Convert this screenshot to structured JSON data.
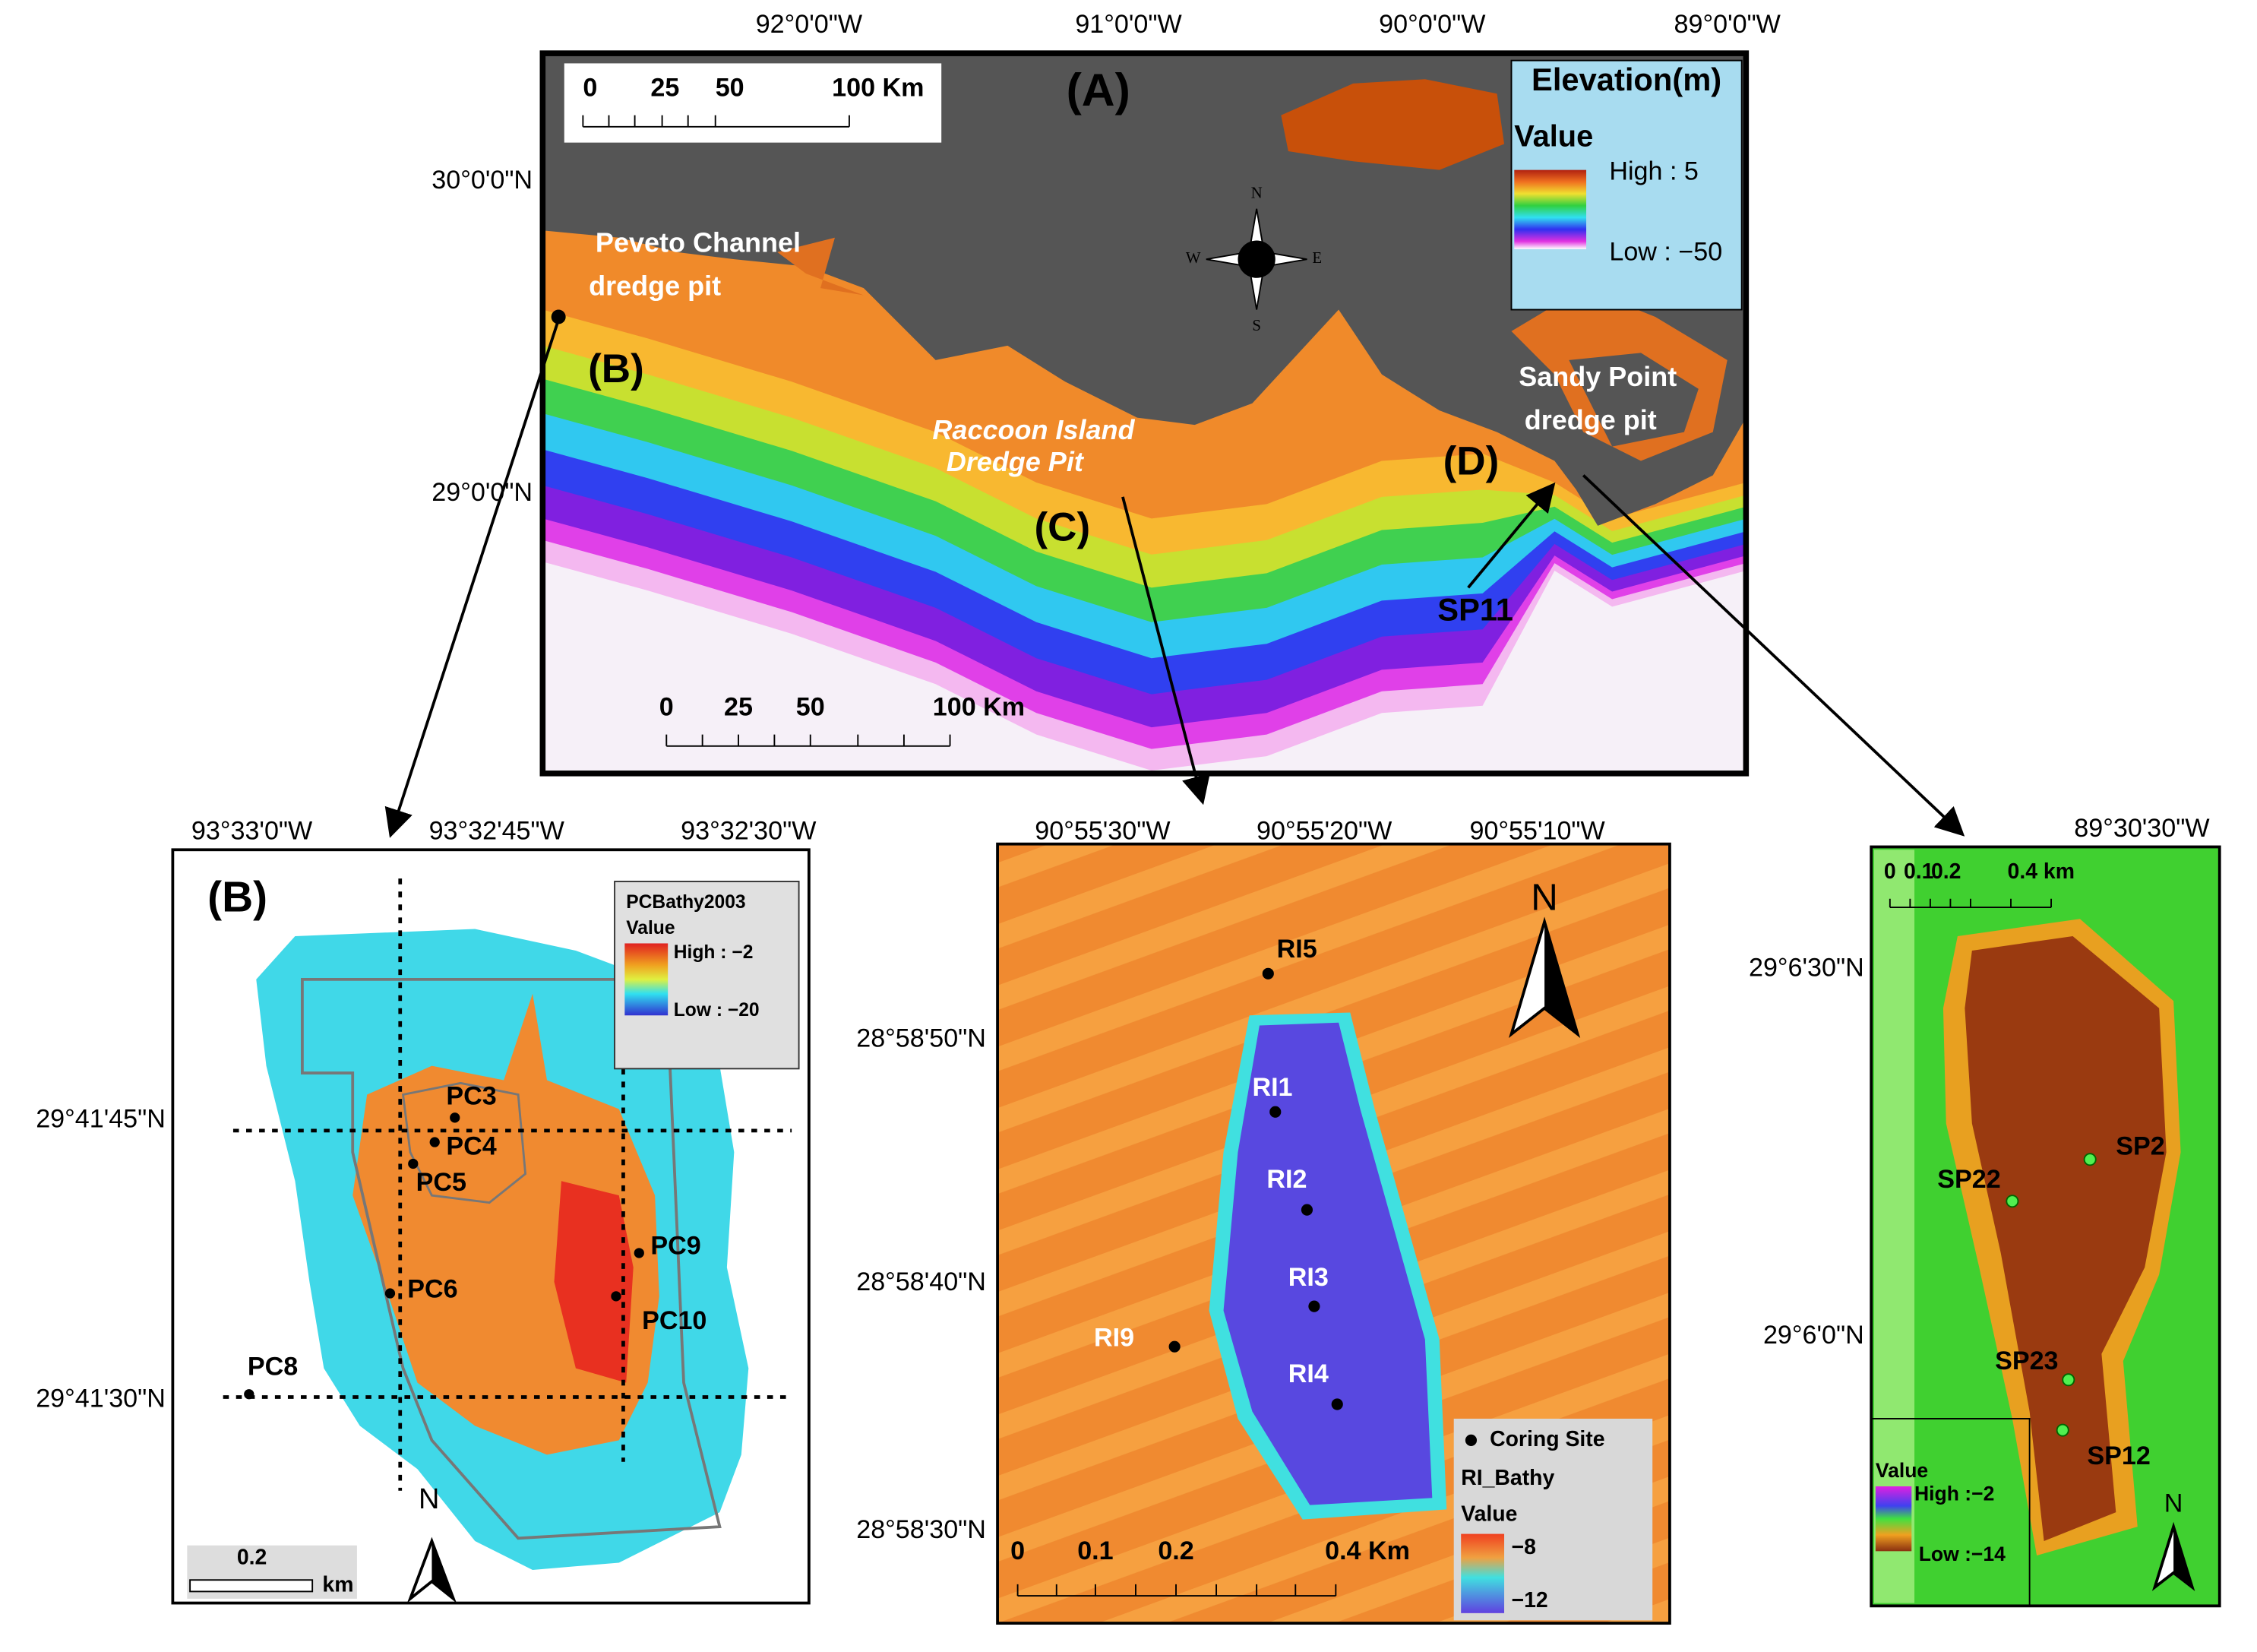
{
  "panel_a": {
    "label": "(A)",
    "longitudes": [
      "92°0'0\"W",
      "91°0'0\"W",
      "90°0'0\"W",
      "89°0'0\"W"
    ],
    "latitudes": [
      "30°0'0\"N",
      "29°0'0\"N"
    ],
    "scale_top": [
      "0",
      "25",
      "50",
      "100 Km"
    ],
    "scale_bottom": [
      "0",
      "25",
      "50",
      "100 Km"
    ],
    "compass": [
      "N",
      "S",
      "W",
      "E"
    ],
    "legend": {
      "title": "Elevation(m)",
      "field": "Value",
      "high": "High : 5",
      "low": "Low : −50"
    },
    "sites": {
      "peveto": [
        "Peveto Channel",
        "dredge pit"
      ],
      "raccoon": [
        "Raccoon Island",
        "Dredge Pit"
      ],
      "sandy": [
        "Sandy Point",
        "dredge pit"
      ]
    },
    "insets": [
      "(B)",
      "(C)",
      "(D)"
    ],
    "sp11": "SP11"
  },
  "panel_b": {
    "label": "(B)",
    "longitudes": [
      "93°33'0\"W",
      "93°32'45\"W",
      "93°32'30\"W"
    ],
    "latitudes": [
      "29°41'45\"N",
      "29°41'30\"N"
    ],
    "legend": {
      "title": "PCBathy2003",
      "field": "Value",
      "high": "High : −2",
      "low": "Low : −20"
    },
    "stations": [
      "PC3",
      "PC4",
      "PC5",
      "PC6",
      "PC8",
      "PC9",
      "PC10"
    ],
    "scale": [
      "0.2",
      "km"
    ],
    "north": "N"
  },
  "panel_c": {
    "longitudes": [
      "90°55'30\"W",
      "90°55'20\"W",
      "90°55'10\"W"
    ],
    "latitudes": [
      "28°58'50\"N",
      "28°58'40\"N",
      "28°58'30\"N"
    ],
    "stations": [
      "RI5",
      "RI1",
      "RI2",
      "RI3",
      "RI4",
      "RI9"
    ],
    "legend": {
      "site": "Coring Site",
      "title": "RI_Bathy",
      "field": "Value",
      "high": "−8",
      "low": "−12"
    },
    "scale": [
      "0",
      "0.1",
      "0.2",
      "0.4 Km"
    ],
    "north": "N"
  },
  "panel_d": {
    "longitudes": [
      "89°30'30\"W"
    ],
    "latitudes": [
      "29°6'30\"N",
      "29°6'0\"N"
    ],
    "stations": [
      "SP2",
      "SP22",
      "SP23",
      "SP12"
    ],
    "legend": {
      "field": "Value",
      "high": "High :−2",
      "low": "Low :−14"
    },
    "scale": [
      "0",
      "0.1",
      "0.2",
      "0.4 km"
    ],
    "north": "N"
  }
}
